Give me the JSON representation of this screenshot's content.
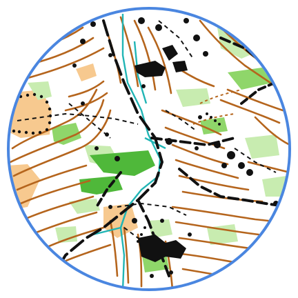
{
  "map": {
    "kind": "orienteering-map",
    "shape": "circle",
    "colors": {
      "frame": "#4a86e0",
      "contour": "#b5651d",
      "track": "#111111",
      "stream": "#21b5b5",
      "green_light": "#c8ecb0",
      "green_mid": "#8fd66a",
      "green_dark": "#4fb83a",
      "open_land": "#f7c98f",
      "rock": "#111111"
    },
    "features": [
      "contours",
      "tracks",
      "paths",
      "stream",
      "vegetation",
      "open-land",
      "boulders",
      "cliffs"
    ]
  }
}
